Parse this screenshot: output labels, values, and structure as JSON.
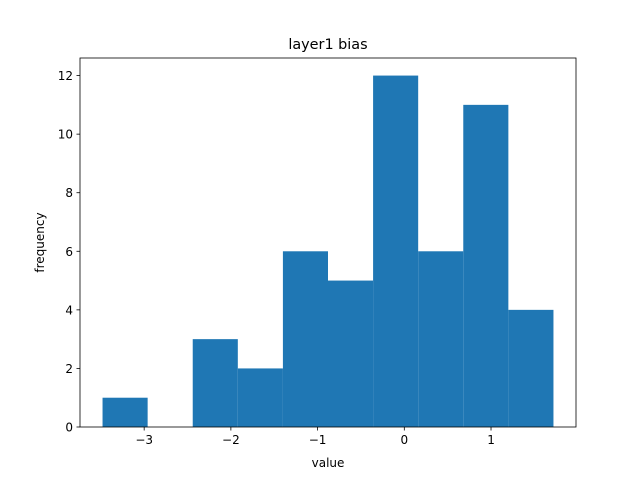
{
  "chart_data": {
    "type": "bar",
    "title": "layer1 bias",
    "xlabel": "value",
    "ylabel": "frequency",
    "bins": [
      {
        "x0": -3.48,
        "x1": -2.96,
        "count": 1
      },
      {
        "x0": -2.96,
        "x1": -2.44,
        "count": 0
      },
      {
        "x0": -2.44,
        "x1": -1.92,
        "count": 3
      },
      {
        "x0": -1.92,
        "x1": -1.4,
        "count": 2
      },
      {
        "x0": -1.4,
        "x1": -0.88,
        "count": 6
      },
      {
        "x0": -0.88,
        "x1": -0.36,
        "count": 5
      },
      {
        "x0": -0.36,
        "x1": 0.16,
        "count": 12
      },
      {
        "x0": 0.16,
        "x1": 0.68,
        "count": 6
      },
      {
        "x0": 0.68,
        "x1": 1.2,
        "count": 11
      },
      {
        "x0": 1.2,
        "x1": 1.72,
        "count": 4
      }
    ],
    "xlim": [
      -3.74,
      1.98
    ],
    "ylim": [
      0,
      12.6
    ],
    "xticks": [
      -3,
      -2,
      -1,
      0,
      1
    ],
    "xtick_labels": [
      "−3",
      "−2",
      "−1",
      "0",
      "1"
    ],
    "yticks": [
      0,
      2,
      4,
      6,
      8,
      10,
      12
    ],
    "ytick_labels": [
      "0",
      "2",
      "4",
      "6",
      "8",
      "10",
      "12"
    ],
    "grid": false,
    "colors": {
      "bar": "#1f77b4",
      "axis": "#000000",
      "background": "#ffffff"
    }
  }
}
